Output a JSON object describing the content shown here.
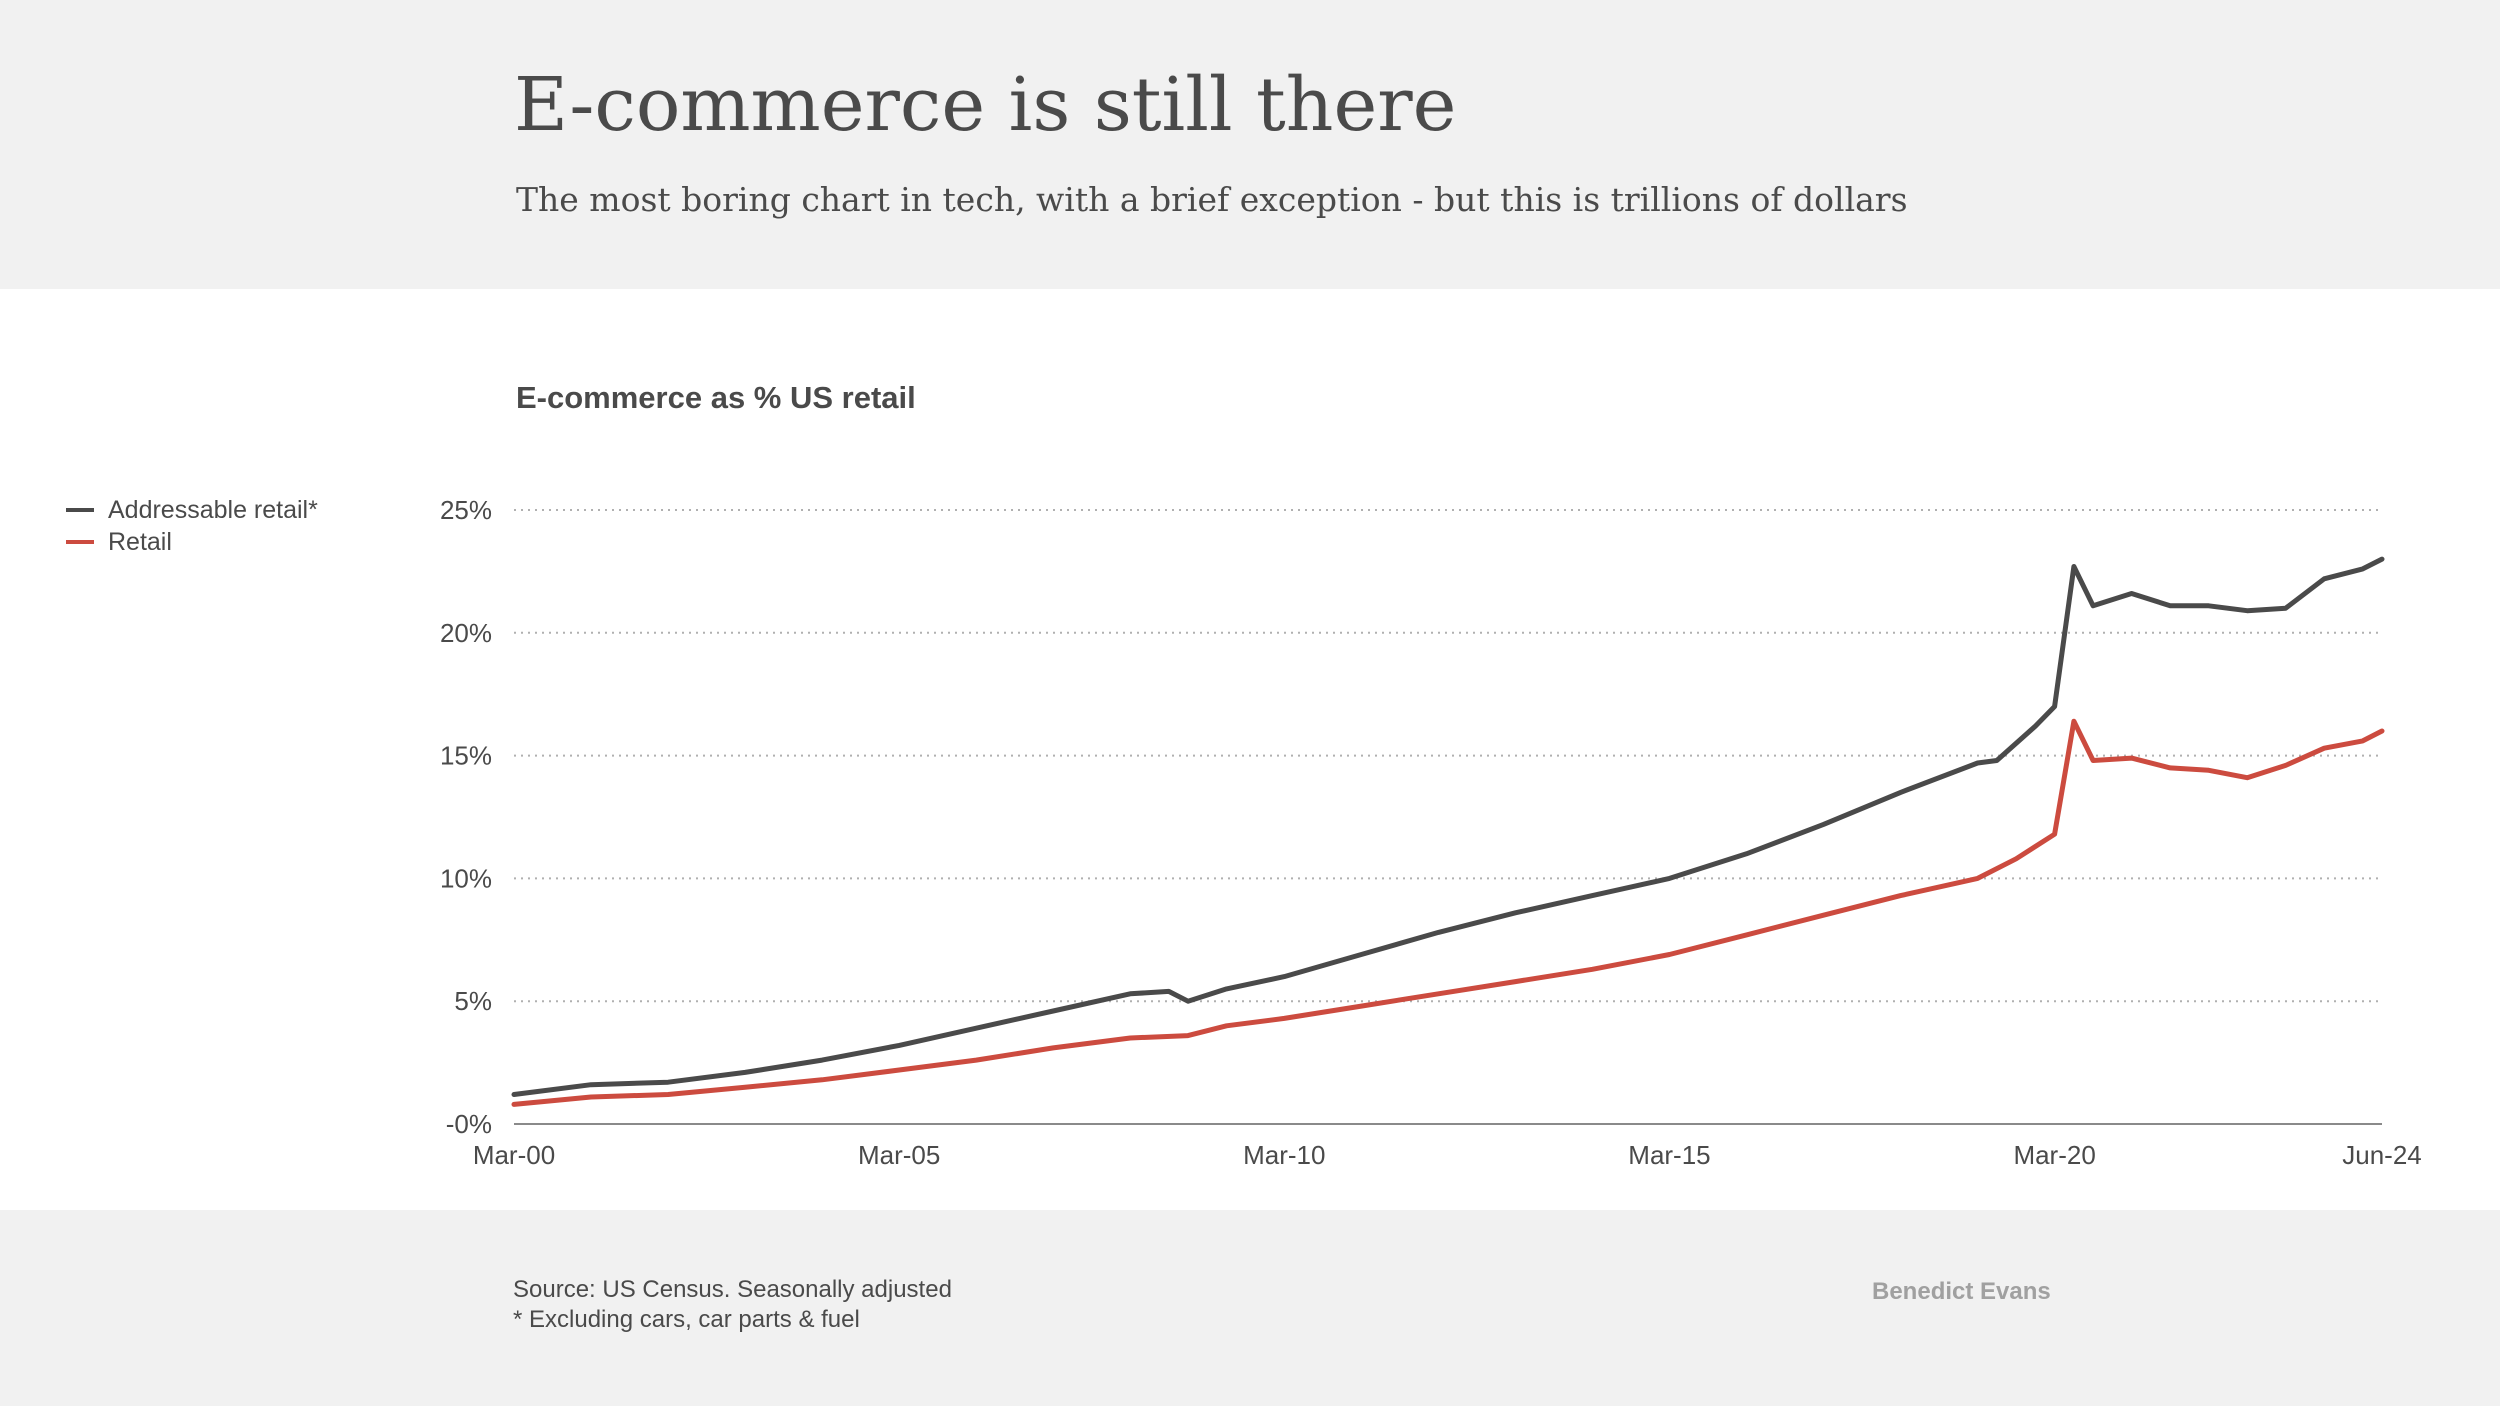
{
  "header": {
    "title": "E-commerce is still there",
    "subtitle": "The most boring chart in tech, with a brief exception - but this is trillions of dollars"
  },
  "footer": {
    "source": "Source: US Census. Seasonally adjusted",
    "note": "* Excluding cars, car parts & fuel",
    "brand": "Benedict Evans"
  },
  "chart_data": {
    "type": "line",
    "title": "E-commerce as % US retail",
    "xlabel": "",
    "ylabel": "",
    "ylim": [
      0,
      25
    ],
    "xlim": [
      "2000-03",
      "2024-06"
    ],
    "grid": true,
    "legend_placement": "top-left",
    "y_ticks": [
      {
        "v": 0,
        "label": "-0%"
      },
      {
        "v": 5,
        "label": "5%"
      },
      {
        "v": 10,
        "label": "10%"
      },
      {
        "v": 15,
        "label": "15%"
      },
      {
        "v": 20,
        "label": "20%"
      },
      {
        "v": 25,
        "label": "25%"
      }
    ],
    "x_ticks": [
      {
        "v": "2000-03",
        "label": "Mar-00"
      },
      {
        "v": "2005-03",
        "label": "Mar-05"
      },
      {
        "v": "2010-03",
        "label": "Mar-10"
      },
      {
        "v": "2015-03",
        "label": "Mar-15"
      },
      {
        "v": "2020-03",
        "label": "Mar-20"
      },
      {
        "v": "2024-06",
        "label": "Jun-24"
      }
    ],
    "series": [
      {
        "name": "Addressable retail*",
        "color": "#4a4a4a",
        "points": [
          [
            "2000-03",
            1.2
          ],
          [
            "2001-03",
            1.6
          ],
          [
            "2002-03",
            1.7
          ],
          [
            "2003-03",
            2.1
          ],
          [
            "2004-03",
            2.6
          ],
          [
            "2005-03",
            3.2
          ],
          [
            "2006-03",
            3.9
          ],
          [
            "2007-03",
            4.6
          ],
          [
            "2008-03",
            5.3
          ],
          [
            "2008-09",
            5.4
          ],
          [
            "2008-12",
            5.0
          ],
          [
            "2009-06",
            5.5
          ],
          [
            "2010-03",
            6.0
          ],
          [
            "2011-03",
            6.9
          ],
          [
            "2012-03",
            7.8
          ],
          [
            "2013-03",
            8.6
          ],
          [
            "2014-03",
            9.3
          ],
          [
            "2015-03",
            10.0
          ],
          [
            "2016-03",
            11.0
          ],
          [
            "2017-03",
            12.2
          ],
          [
            "2018-03",
            13.5
          ],
          [
            "2019-03",
            14.7
          ],
          [
            "2019-06",
            14.8
          ],
          [
            "2019-12",
            16.2
          ],
          [
            "2020-03",
            17.0
          ],
          [
            "2020-06",
            22.7
          ],
          [
            "2020-09",
            21.1
          ],
          [
            "2021-03",
            21.6
          ],
          [
            "2021-09",
            21.1
          ],
          [
            "2022-03",
            21.1
          ],
          [
            "2022-09",
            20.9
          ],
          [
            "2023-03",
            21.0
          ],
          [
            "2023-09",
            22.2
          ],
          [
            "2024-03",
            22.6
          ],
          [
            "2024-06",
            23.0
          ]
        ]
      },
      {
        "name": "Retail",
        "color": "#cc4b3f",
        "points": [
          [
            "2000-03",
            0.8
          ],
          [
            "2001-03",
            1.1
          ],
          [
            "2002-03",
            1.2
          ],
          [
            "2003-03",
            1.5
          ],
          [
            "2004-03",
            1.8
          ],
          [
            "2005-03",
            2.2
          ],
          [
            "2006-03",
            2.6
          ],
          [
            "2007-03",
            3.1
          ],
          [
            "2008-03",
            3.5
          ],
          [
            "2008-12",
            3.6
          ],
          [
            "2009-06",
            4.0
          ],
          [
            "2010-03",
            4.3
          ],
          [
            "2011-03",
            4.8
          ],
          [
            "2012-03",
            5.3
          ],
          [
            "2013-03",
            5.8
          ],
          [
            "2014-03",
            6.3
          ],
          [
            "2015-03",
            6.9
          ],
          [
            "2016-03",
            7.7
          ],
          [
            "2017-03",
            8.5
          ],
          [
            "2018-03",
            9.3
          ],
          [
            "2019-03",
            10.0
          ],
          [
            "2019-09",
            10.8
          ],
          [
            "2020-03",
            11.8
          ],
          [
            "2020-06",
            16.4
          ],
          [
            "2020-09",
            14.8
          ],
          [
            "2021-03",
            14.9
          ],
          [
            "2021-09",
            14.5
          ],
          [
            "2022-03",
            14.4
          ],
          [
            "2022-09",
            14.1
          ],
          [
            "2023-03",
            14.6
          ],
          [
            "2023-09",
            15.3
          ],
          [
            "2024-03",
            15.6
          ],
          [
            "2024-06",
            16.0
          ]
        ]
      }
    ]
  }
}
